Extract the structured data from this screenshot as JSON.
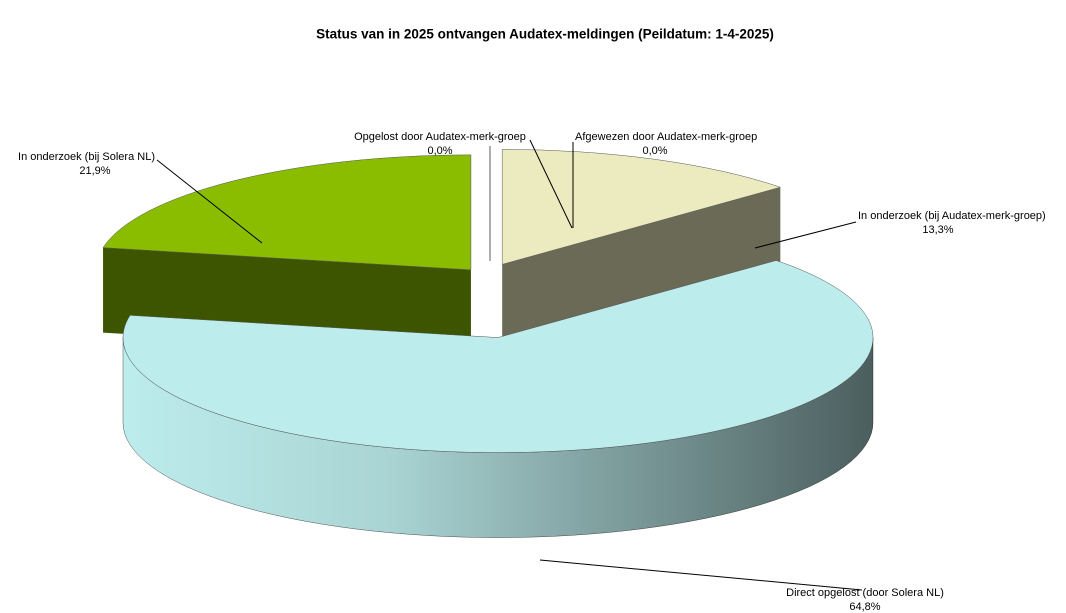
{
  "chart_data": {
    "type": "pie3d",
    "title": "Status van in 2025 ontvangen Audatex-meldingen (Peildatum: 1-4-2025)",
    "categories": [
      "In onderzoek (bij Audatex-merk-groep)",
      "Direct opgelost (door Solera NL)",
      "In onderzoek (bij Solera NL)",
      "Opgelost door Audatex-merk-groep",
      "Afgewezen door Audatex-merk-groep"
    ],
    "values": [
      13.3,
      64.8,
      21.9,
      0.0,
      0.0
    ],
    "value_labels": [
      "13,3%",
      "64,8%",
      "21,9%",
      "0,0%",
      "0,0%"
    ],
    "colors": [
      "#ecebc0",
      "#bdecec",
      "#8abd00",
      "#c0504d",
      "#7a2350"
    ]
  }
}
